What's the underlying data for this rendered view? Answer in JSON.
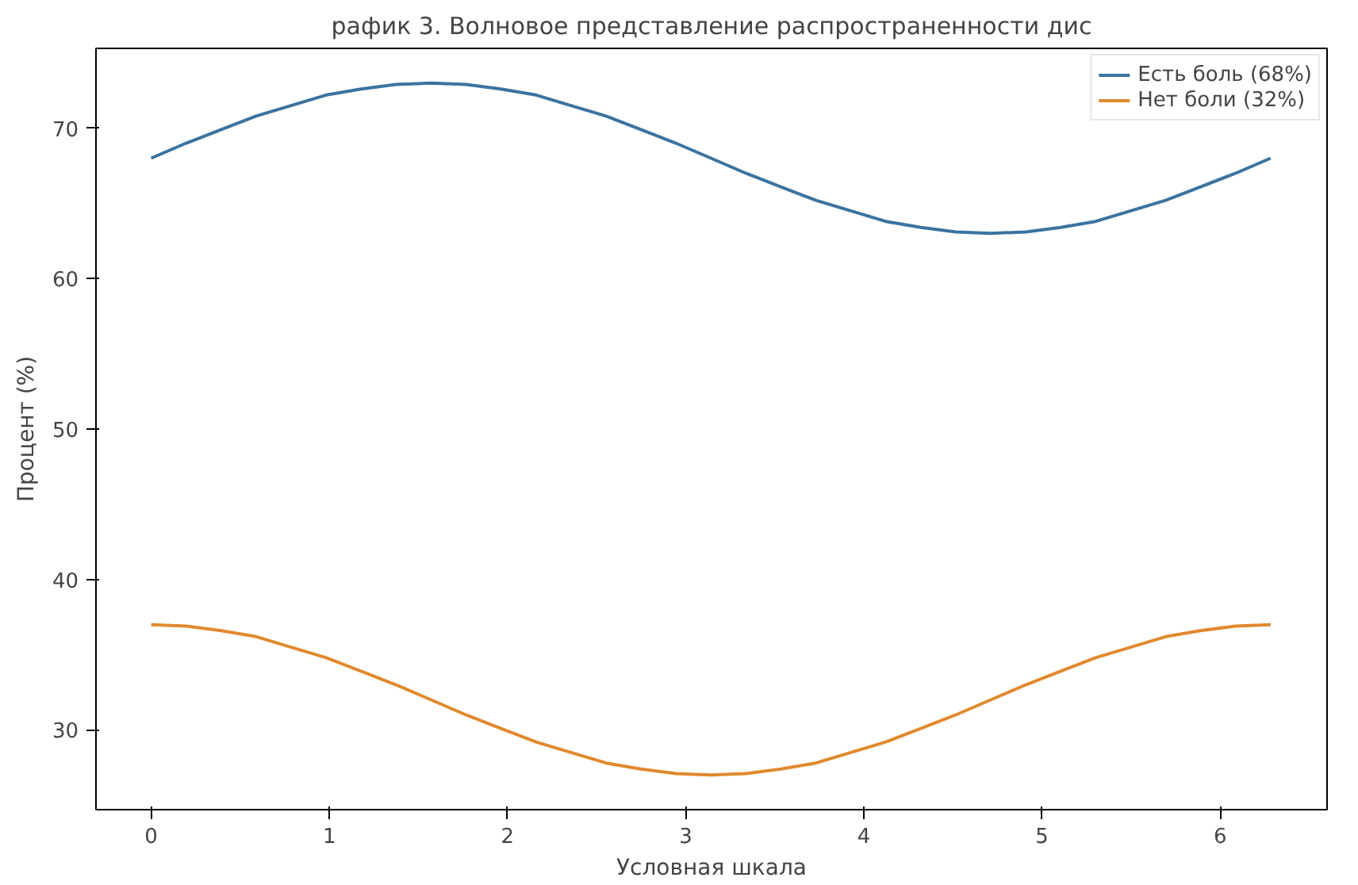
{
  "chart_data": {
    "type": "line",
    "title": "рафик 3. Волновое представление распространенности дис",
    "xlabel": "Условная шкала",
    "ylabel": "Процент (%)",
    "x": [
      0,
      0.196,
      0.393,
      0.589,
      0.785,
      0.982,
      1.178,
      1.374,
      1.571,
      1.767,
      1.963,
      2.16,
      2.356,
      2.553,
      2.749,
      2.945,
      3.142,
      3.338,
      3.534,
      3.731,
      3.927,
      4.123,
      4.32,
      4.516,
      4.712,
      4.909,
      5.105,
      5.301,
      5.498,
      5.694,
      5.89,
      6.087,
      6.283
    ],
    "series": [
      {
        "name": "Есть боль (68%)",
        "color": "#3b73a0",
        "values": [
          68,
          69.0,
          69.9,
          70.8,
          71.5,
          72.2,
          72.6,
          72.9,
          73,
          72.9,
          72.6,
          72.2,
          71.5,
          70.8,
          69.9,
          69.0,
          68,
          67.0,
          66.1,
          65.2,
          64.5,
          63.8,
          63.4,
          63.1,
          63,
          63.1,
          63.4,
          63.8,
          64.5,
          65.2,
          66.1,
          67.0,
          68
        ]
      },
      {
        "name": "Нет боли (32%)",
        "color": "#e08a2e",
        "values": [
          37,
          36.9,
          36.6,
          36.2,
          35.5,
          34.8,
          33.9,
          33.0,
          32,
          31.0,
          30.1,
          29.2,
          28.5,
          27.8,
          27.4,
          27.1,
          27,
          27.1,
          27.4,
          27.8,
          28.5,
          29.2,
          30.1,
          31.0,
          32,
          33.0,
          33.9,
          34.8,
          35.5,
          36.2,
          36.6,
          36.9,
          37
        ]
      }
    ],
    "xlim": [
      -0.31,
      6.6
    ],
    "ylim": [
      24.7,
      75.3
    ],
    "xticks": [
      0,
      1,
      2,
      3,
      4,
      5,
      6
    ],
    "yticks": [
      30,
      40,
      50,
      60,
      70
    ],
    "grid": false,
    "legend": "top right",
    "marker": "none",
    "line_style": "solid"
  }
}
